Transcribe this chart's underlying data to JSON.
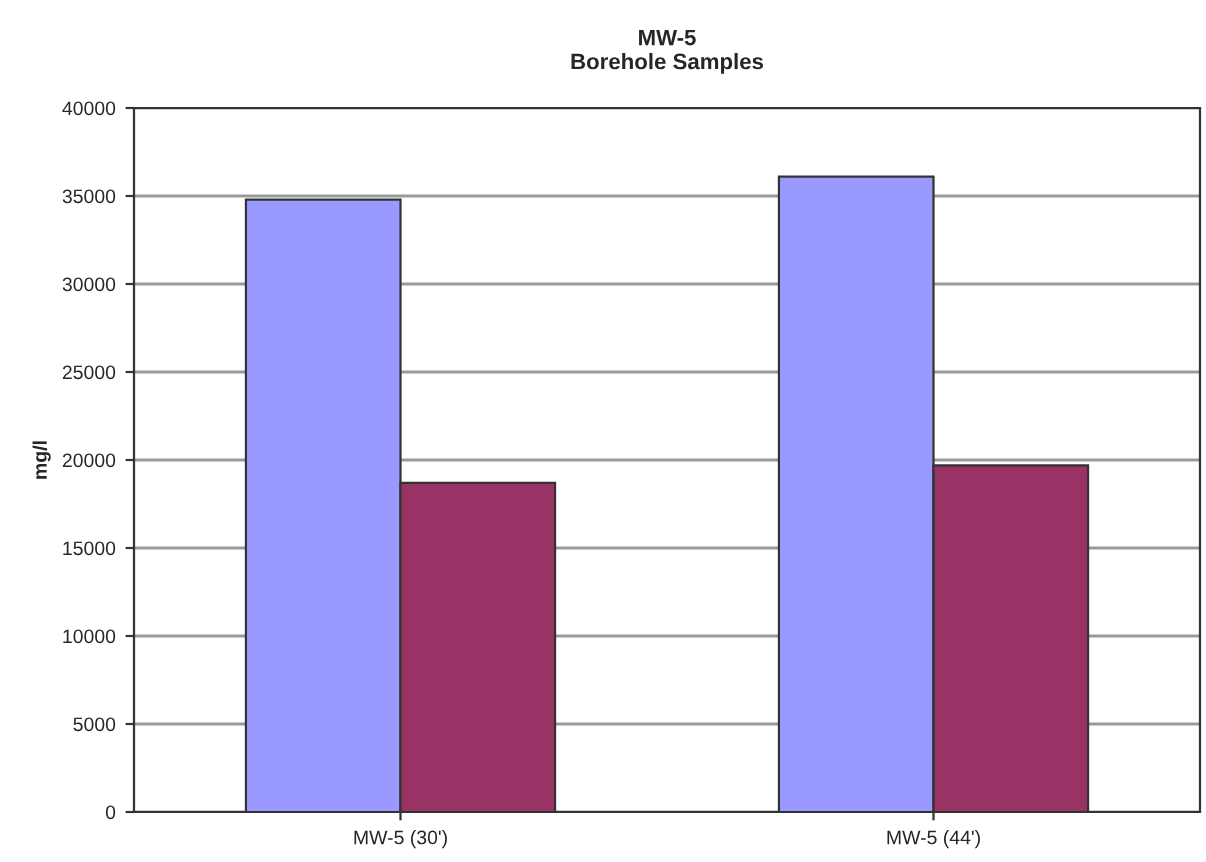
{
  "chart_data": {
    "type": "bar",
    "title": "MW-5\nBorehole Samples",
    "ylabel": "mg/l",
    "categories": [
      "MW-5 (30')",
      "MW-5 (44')"
    ],
    "series": [
      {
        "color": "#9999ff",
        "values": [
          34800,
          36100
        ]
      },
      {
        "color": "#993366",
        "values": [
          18700,
          19700
        ]
      }
    ],
    "ylim": [
      0,
      40000
    ],
    "yticks": [
      0,
      5000,
      10000,
      15000,
      20000,
      25000,
      30000,
      35000,
      40000
    ],
    "grid": "y"
  }
}
